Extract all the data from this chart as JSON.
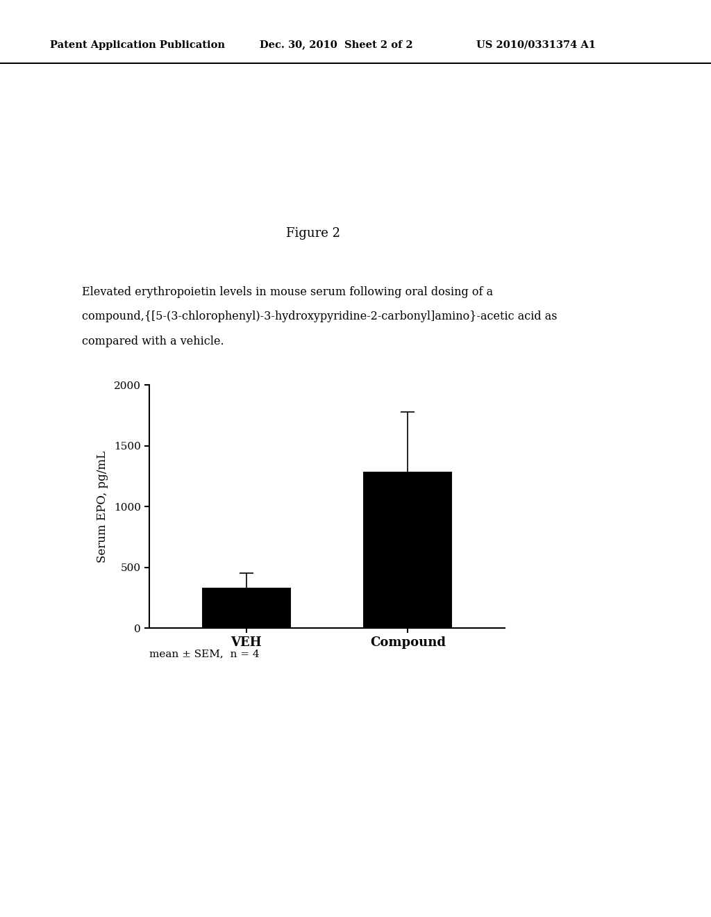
{
  "background_color": "#ffffff",
  "header_left": "Patent Application Publication",
  "header_center": "Dec. 30, 2010  Sheet 2 of 2",
  "header_right": "US 2010/0331374 A1",
  "figure_label": "Figure 2",
  "description_line1": "Elevated erythropoietin levels in mouse serum following oral dosing of a",
  "description_line2": "compound,{[5-(3-chlorophenyl)-3-hydroxypyridine-2-carbonyl]amino}-acetic acid as",
  "description_line3": "compared with a vehicle.",
  "categories": [
    "VEH",
    "Compound"
  ],
  "values": [
    330,
    1290
  ],
  "errors": [
    120,
    490
  ],
  "ylabel": "Serum EPO, pg/mL",
  "ylim": [
    0,
    2000
  ],
  "yticks": [
    0,
    500,
    1000,
    1500,
    2000
  ],
  "bar_color": "#000000",
  "bar_width": 0.55,
  "footnote": "mean ± SEM,  n = 4",
  "title_fontsize": 13,
  "axis_fontsize": 12,
  "tick_fontsize": 11,
  "header_fontsize": 10.5,
  "desc_fontsize": 11.5,
  "footnote_fontsize": 11
}
